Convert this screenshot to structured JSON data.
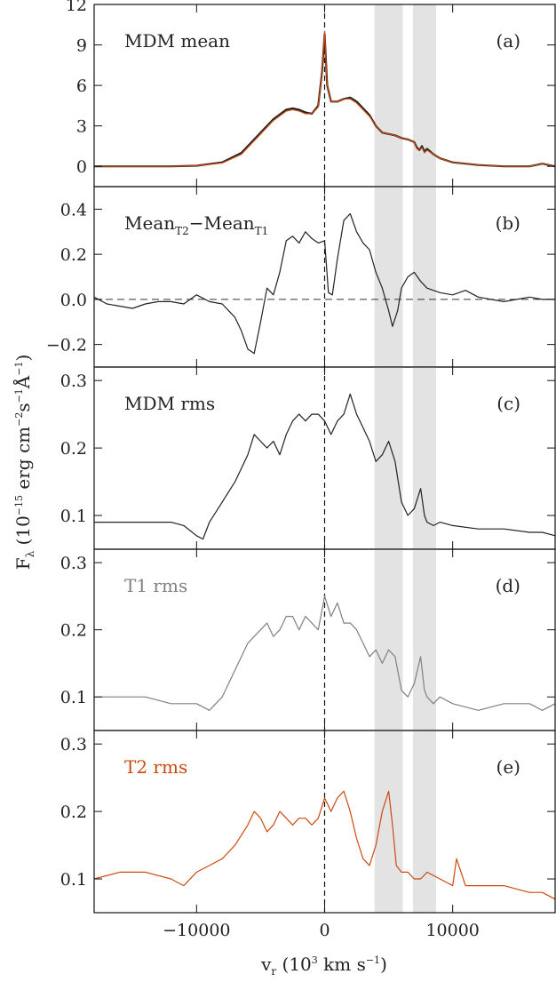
{
  "figure": {
    "ylabel_main": "F",
    "ylabel_sub": "λ",
    "ylabel_rest": " (10",
    "ylabel_exp1": "−15",
    "ylabel_unit1": " erg cm",
    "ylabel_exp2": "−2",
    "ylabel_unit2": "s",
    "ylabel_exp3": "−1",
    "ylabel_unit3": "Å",
    "ylabel_exp4": "−1",
    "ylabel_close": ")",
    "xlabel_main": "v",
    "xlabel_sub": "r",
    "xlabel_rest": " (10",
    "xlabel_exp": "3",
    "xlabel_unit": " km s",
    "xlabel_exp2": "−1",
    "xlabel_close": ")"
  },
  "chart_data": [
    {
      "type": "line",
      "panel": "(a)",
      "title": "MDM mean",
      "title_color": "#222222",
      "xlim": [
        -18000,
        18000
      ],
      "ylim": [
        -1.5,
        12
      ],
      "yticks": [
        0,
        3,
        6,
        9,
        12
      ],
      "xticks": [
        -10000,
        0,
        10000
      ],
      "xtick_labels": [
        "",
        "",
        ""
      ],
      "zero_line": false,
      "shaded_regions": [
        [
          3900,
          6100
        ],
        [
          6900,
          8700
        ]
      ],
      "series": [
        {
          "name": "",
          "color": "#222222",
          "x": [
            -18000,
            -15000,
            -12000,
            -10000,
            -8000,
            -6500,
            -5000,
            -4000,
            -3000,
            -2500,
            -2000,
            -1500,
            -1000,
            -500,
            -200,
            0,
            200,
            500,
            1000,
            1500,
            2000,
            2500,
            3000,
            3500,
            4000,
            4500,
            5000,
            5500,
            6000,
            6500,
            7000,
            7200,
            7400,
            7600,
            7800,
            8000,
            8500,
            9000,
            10000,
            12000,
            14000,
            16000,
            17000,
            18000
          ],
          "y": [
            0,
            0,
            0,
            0.05,
            0.3,
            1,
            2.5,
            3.5,
            4.2,
            4.3,
            4.2,
            4.0,
            3.9,
            4.5,
            7.0,
            9.8,
            6.0,
            4.8,
            4.8,
            5.0,
            5.1,
            4.8,
            4.3,
            3.8,
            3.0,
            2.5,
            2.4,
            2.3,
            2.1,
            2.0,
            1.8,
            1.4,
            1.2,
            1.5,
            1.1,
            1.3,
            0.9,
            0.6,
            0.3,
            0.1,
            0,
            0,
            0.2,
            0
          ]
        },
        {
          "name": "",
          "color": "#cc4a10",
          "x": [
            -18000,
            -15000,
            -12000,
            -10000,
            -8000,
            -6500,
            -5000,
            -4000,
            -3000,
            -2500,
            -2000,
            -1500,
            -1000,
            -500,
            -200,
            0,
            200,
            500,
            1000,
            1500,
            2000,
            2500,
            3000,
            3500,
            4000,
            4500,
            5000,
            5500,
            6000,
            6500,
            7000,
            7200,
            7400,
            7600,
            7800,
            8000,
            8500,
            9000,
            10000,
            12000,
            14000,
            16000,
            17000,
            18000
          ],
          "y": [
            0,
            0,
            0,
            0.05,
            0.25,
            0.9,
            2.4,
            3.4,
            4.1,
            4.2,
            4.1,
            3.9,
            3.9,
            4.4,
            7.0,
            10.0,
            6.0,
            4.8,
            4.8,
            5.0,
            5.0,
            4.7,
            4.2,
            3.7,
            3.0,
            2.5,
            2.4,
            2.3,
            2.1,
            2.0,
            1.8,
            1.3,
            1.2,
            1.4,
            1.0,
            1.2,
            0.9,
            0.6,
            0.3,
            0.1,
            0,
            0,
            0.2,
            0
          ]
        }
      ]
    },
    {
      "type": "line",
      "panel": "(b)",
      "title": "Mean",
      "title_sub1": "T2",
      "title_mid": "−Mean",
      "title_sub2": "T1",
      "title_color": "#222222",
      "xlim": [
        -18000,
        18000
      ],
      "ylim": [
        -0.3,
        0.5
      ],
      "yticks": [
        -0.2,
        0.0,
        0.2,
        0.4
      ],
      "ytick_labels": [
        "−0.2",
        "0.0",
        "0.2",
        "0.4"
      ],
      "xticks": [
        -10000,
        0,
        10000
      ],
      "xtick_labels": [
        "",
        "",
        ""
      ],
      "zero_line": true,
      "shaded_regions": [
        [
          3900,
          6100
        ],
        [
          6900,
          8700
        ]
      ],
      "series": [
        {
          "name": "",
          "color": "#222222",
          "x": [
            -18000,
            -17000,
            -16000,
            -15000,
            -14000,
            -13000,
            -12000,
            -11000,
            -10000,
            -9000,
            -8000,
            -7000,
            -6500,
            -6000,
            -5500,
            -5000,
            -4500,
            -4000,
            -3500,
            -3000,
            -2500,
            -2000,
            -1500,
            -1000,
            -500,
            0,
            300,
            600,
            1000,
            1500,
            2000,
            2500,
            3000,
            3500,
            4000,
            4500,
            5000,
            5300,
            5700,
            6000,
            6500,
            7000,
            7500,
            8000,
            9000,
            10000,
            11000,
            12000,
            13000,
            14000,
            15000,
            16000,
            17000,
            18000
          ],
          "y": [
            0.01,
            -0.02,
            -0.03,
            -0.04,
            -0.02,
            -0.01,
            -0.01,
            -0.02,
            0.02,
            -0.01,
            -0.02,
            -0.08,
            -0.14,
            -0.22,
            -0.24,
            -0.1,
            0.05,
            0.02,
            0.12,
            0.26,
            0.28,
            0.25,
            0.3,
            0.27,
            0.25,
            0.26,
            0.03,
            0.02,
            0.18,
            0.35,
            0.38,
            0.3,
            0.25,
            0.22,
            0.12,
            0.05,
            -0.05,
            -0.12,
            -0.05,
            0.05,
            0.1,
            0.12,
            0.08,
            0.05,
            0.03,
            0.02,
            0.04,
            0.01,
            0.0,
            -0.01,
            0.0,
            0.01,
            0.0,
            0.0
          ]
        }
      ]
    },
    {
      "type": "line",
      "panel": "(c)",
      "title": "MDM rms",
      "title_color": "#222222",
      "xlim": [
        -18000,
        18000
      ],
      "ylim": [
        0.05,
        0.32
      ],
      "yticks": [
        0.1,
        0.2,
        0.3
      ],
      "xticks": [
        -10000,
        0,
        10000
      ],
      "xtick_labels": [
        "",
        "",
        ""
      ],
      "zero_line": false,
      "shaded_regions": [
        [
          3900,
          6100
        ],
        [
          6900,
          8700
        ]
      ],
      "series": [
        {
          "name": "",
          "color": "#222222",
          "x": [
            -18000,
            -16000,
            -14000,
            -12000,
            -11000,
            -10000,
            -9500,
            -9000,
            -8000,
            -7000,
            -6000,
            -5500,
            -5000,
            -4500,
            -4000,
            -3500,
            -3000,
            -2500,
            -2000,
            -1500,
            -1000,
            -500,
            0,
            500,
            1000,
            1500,
            2000,
            2500,
            3000,
            3500,
            4000,
            4500,
            5000,
            5500,
            6000,
            6500,
            7000,
            7500,
            7800,
            8000,
            8500,
            9000,
            10000,
            12000,
            14000,
            16000,
            17000,
            18000
          ],
          "y": [
            0.09,
            0.09,
            0.09,
            0.09,
            0.085,
            0.07,
            0.065,
            0.09,
            0.12,
            0.15,
            0.19,
            0.22,
            0.21,
            0.2,
            0.21,
            0.19,
            0.22,
            0.24,
            0.25,
            0.24,
            0.25,
            0.25,
            0.24,
            0.22,
            0.24,
            0.25,
            0.28,
            0.25,
            0.23,
            0.21,
            0.18,
            0.19,
            0.21,
            0.18,
            0.12,
            0.1,
            0.11,
            0.14,
            0.1,
            0.09,
            0.085,
            0.09,
            0.085,
            0.08,
            0.08,
            0.075,
            0.075,
            0.07
          ]
        }
      ]
    },
    {
      "type": "line",
      "panel": "(d)",
      "title": "T1 rms",
      "title_color": "#808080",
      "xlim": [
        -18000,
        18000
      ],
      "ylim": [
        0.05,
        0.32
      ],
      "yticks": [
        0.1,
        0.2,
        0.3
      ],
      "xticks": [
        -10000,
        0,
        10000
      ],
      "xtick_labels": [
        "",
        "",
        ""
      ],
      "zero_line": false,
      "shaded_regions": [
        [
          3900,
          6100
        ],
        [
          6900,
          8700
        ]
      ],
      "series": [
        {
          "name": "",
          "color": "#808080",
          "x": [
            -18000,
            -16000,
            -14000,
            -12000,
            -11000,
            -10000,
            -9000,
            -8000,
            -7000,
            -6000,
            -5500,
            -5000,
            -4500,
            -4000,
            -3500,
            -3000,
            -2500,
            -2000,
            -1500,
            -1000,
            -500,
            0,
            500,
            1000,
            1500,
            2000,
            2500,
            3000,
            3500,
            4000,
            4500,
            5000,
            5500,
            6000,
            6500,
            7000,
            7500,
            7800,
            8000,
            8500,
            9000,
            10000,
            12000,
            14000,
            16000,
            17000,
            18000
          ],
          "y": [
            0.1,
            0.1,
            0.1,
            0.09,
            0.09,
            0.09,
            0.08,
            0.1,
            0.14,
            0.18,
            0.19,
            0.2,
            0.21,
            0.19,
            0.2,
            0.22,
            0.22,
            0.2,
            0.22,
            0.21,
            0.2,
            0.25,
            0.22,
            0.24,
            0.21,
            0.21,
            0.2,
            0.18,
            0.16,
            0.17,
            0.15,
            0.17,
            0.16,
            0.11,
            0.1,
            0.12,
            0.16,
            0.11,
            0.1,
            0.09,
            0.1,
            0.09,
            0.08,
            0.09,
            0.09,
            0.08,
            0.09
          ]
        }
      ]
    },
    {
      "type": "line",
      "panel": "(e)",
      "title": "T2 rms",
      "title_color": "#cc4a10",
      "xlim": [
        -18000,
        18000
      ],
      "ylim": [
        0.05,
        0.32
      ],
      "yticks": [
        0.1,
        0.2,
        0.3
      ],
      "xticks": [
        -10000,
        0,
        10000
      ],
      "xtick_labels": [
        "−10000",
        "0",
        "10000"
      ],
      "zero_line": false,
      "shaded_regions": [
        [
          3900,
          6100
        ],
        [
          6900,
          8700
        ]
      ],
      "series": [
        {
          "name": "",
          "color": "#cc4a10",
          "x": [
            -18000,
            -16000,
            -14000,
            -12000,
            -11000,
            -10000,
            -9000,
            -8000,
            -7000,
            -6000,
            -5500,
            -5000,
            -4500,
            -4000,
            -3500,
            -3000,
            -2500,
            -2000,
            -1500,
            -1000,
            -500,
            0,
            500,
            1000,
            1500,
            2000,
            2500,
            3000,
            3500,
            4000,
            4500,
            5000,
            5300,
            5600,
            6000,
            6500,
            7000,
            7500,
            8000,
            9000,
            10000,
            10300,
            11000,
            12000,
            14000,
            16000,
            17000,
            18000
          ],
          "y": [
            0.1,
            0.11,
            0.11,
            0.1,
            0.09,
            0.11,
            0.12,
            0.13,
            0.15,
            0.18,
            0.2,
            0.19,
            0.17,
            0.18,
            0.2,
            0.19,
            0.18,
            0.19,
            0.19,
            0.18,
            0.19,
            0.22,
            0.2,
            0.22,
            0.23,
            0.2,
            0.16,
            0.13,
            0.12,
            0.15,
            0.2,
            0.23,
            0.18,
            0.12,
            0.11,
            0.11,
            0.1,
            0.1,
            0.11,
            0.1,
            0.09,
            0.13,
            0.09,
            0.09,
            0.09,
            0.08,
            0.08,
            0.07
          ]
        }
      ]
    }
  ]
}
